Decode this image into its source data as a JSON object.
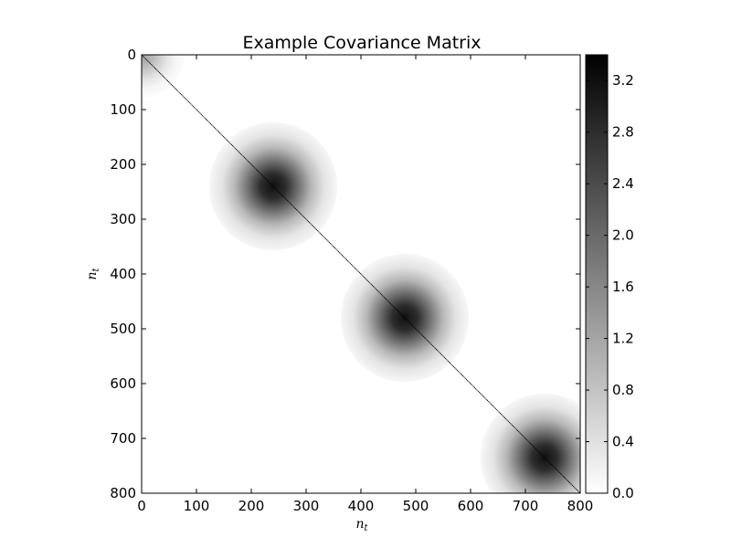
{
  "chart_data": {
    "type": "heatmap",
    "title": "Example Covariance Matrix",
    "xlabel": "n",
    "xlabel_subscript": "t",
    "ylabel": "n",
    "ylabel_subscript": "t",
    "xlim": [
      0,
      800
    ],
    "ylim": [
      800,
      0
    ],
    "xticks": [
      0,
      100,
      200,
      300,
      400,
      500,
      600,
      700,
      800
    ],
    "yticks": [
      0,
      100,
      200,
      300,
      400,
      500,
      600,
      700,
      800
    ],
    "colormap": "gray_r",
    "colorbar": {
      "range": [
        0.0,
        3.4
      ],
      "ticks": [
        "0.0",
        "0.4",
        "0.8",
        "1.2",
        "1.6",
        "2.0",
        "2.4",
        "2.8",
        "3.2"
      ]
    },
    "diagonal": {
      "from": 0,
      "to": 800,
      "value": 3.4
    },
    "blobs": [
      {
        "center": [
          0,
          0
        ],
        "peak": 1.2,
        "sigma": 30
      },
      {
        "center": [
          240,
          240
        ],
        "peak": 3.2,
        "sigma": 45
      },
      {
        "center": [
          480,
          480
        ],
        "peak": 3.2,
        "sigma": 45
      },
      {
        "center": [
          735,
          735
        ],
        "peak": 3.2,
        "sigma": 45
      }
    ]
  },
  "colors": {
    "background": "#ffffff",
    "ink": "#000000",
    "high": "#000000",
    "low": "#ffffff"
  }
}
